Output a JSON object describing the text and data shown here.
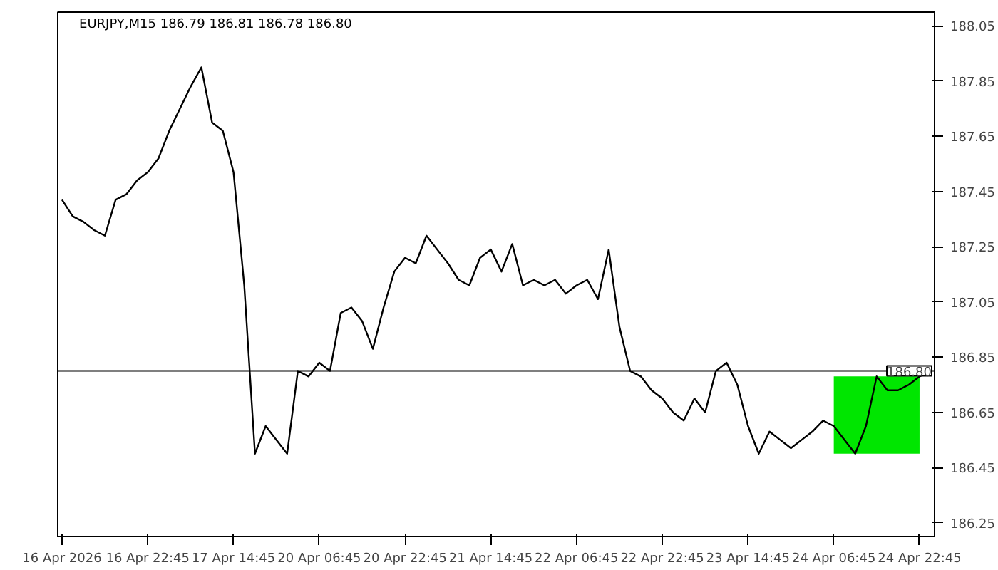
{
  "chart_data": {
    "type": "line",
    "title": "EURJPY,M15  186.79 186.81 186.78 186.80",
    "categories": [
      "16 Apr 2026",
      null,
      null,
      null,
      null,
      null,
      null,
      null,
      "16 Apr 22:45",
      null,
      null,
      null,
      null,
      null,
      null,
      null,
      "17 Apr 14:45",
      null,
      null,
      null,
      null,
      null,
      null,
      null,
      "20 Apr 06:45",
      null,
      null,
      null,
      null,
      null,
      null,
      null,
      "20 Apr 22:45",
      null,
      null,
      null,
      null,
      null,
      null,
      null,
      "21 Apr 14:45",
      null,
      null,
      null,
      null,
      null,
      null,
      null,
      "22 Apr 06:45",
      null,
      null,
      null,
      null,
      null,
      null,
      null,
      "22 Apr 22:45",
      null,
      null,
      null,
      null,
      null,
      null,
      null,
      "23 Apr 14:45",
      null,
      null,
      null,
      null,
      null,
      null,
      null,
      "24 Apr 06:45",
      null,
      null,
      null,
      null,
      null,
      null,
      null,
      "24 Apr 22:45",
      null
    ],
    "series": [
      {
        "color": "#000000",
        "values": [
          187.42,
          187.36,
          187.34,
          187.31,
          187.29,
          187.42,
          187.44,
          187.49,
          187.52,
          187.57,
          187.67,
          187.75,
          187.83,
          187.9,
          187.7,
          187.67,
          187.52,
          187.11,
          186.5,
          186.6,
          186.55,
          186.5,
          186.8,
          186.78,
          186.83,
          186.8,
          187.01,
          187.03,
          186.98,
          186.88,
          187.03,
          187.16,
          187.21,
          187.19,
          187.29,
          187.24,
          187.19,
          187.13,
          187.11,
          187.21,
          187.24,
          187.16,
          187.26,
          187.11,
          187.13,
          187.11,
          187.13,
          187.08,
          187.11,
          187.13,
          187.06,
          187.24,
          186.96,
          186.8,
          186.78,
          186.73,
          186.7,
          186.65,
          186.62,
          186.7,
          186.65,
          186.8,
          186.83,
          186.75,
          186.6,
          186.5,
          186.58,
          186.55,
          186.52,
          186.55,
          186.58,
          186.62,
          186.6,
          186.55,
          186.5,
          186.6,
          186.78,
          186.73,
          186.73,
          186.75,
          186.78,
          186.8
        ]
      }
    ],
    "ylim": [
      186.2,
      188.1
    ],
    "yticks": [
      186.25,
      186.45,
      186.65,
      186.85,
      187.05,
      187.25,
      187.45,
      187.65,
      187.85,
      188.05
    ],
    "ref_lines": [
      {
        "axis": "y",
        "value": 186.8,
        "label": "186.80",
        "color": "#000000"
      }
    ],
    "bands": [
      {
        "axis": "x",
        "from": "24 Apr 06:45",
        "to": "24 Apr 22:45",
        "color": "#00e600"
      }
    ],
    "grid": false
  }
}
